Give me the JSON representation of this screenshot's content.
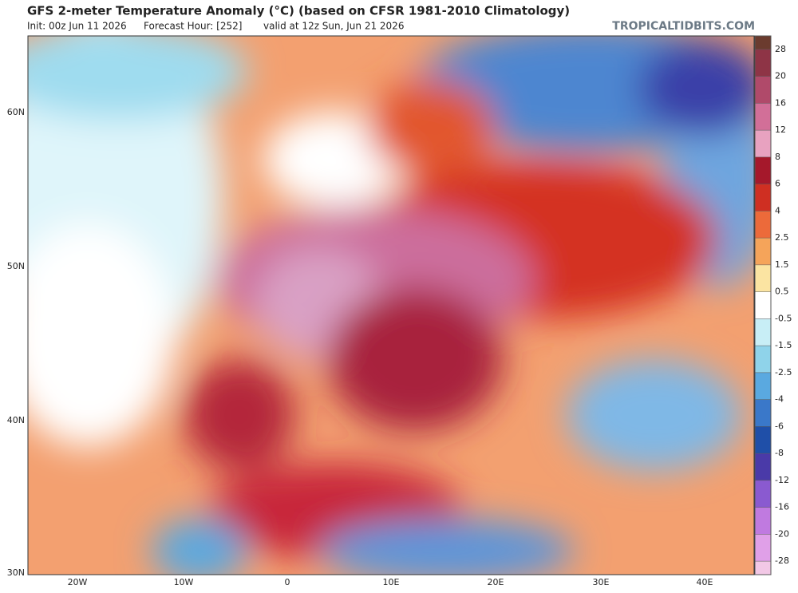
{
  "header": {
    "title": "GFS 2-meter Temperature Anomaly (°C) (based on CFSR 1981-2010 Climatology)",
    "init": "Init: 00z Jun 11 2026",
    "forecast_hour": "Forecast Hour: [252]",
    "valid": "valid at 12z Sun, Jun 21 2026",
    "watermark": "TROPICALTIDBITS.COM"
  },
  "map": {
    "lat_labels": [
      "60N",
      "50N",
      "40N",
      "30N"
    ],
    "lon_labels": [
      "20W",
      "10W",
      "0",
      "10E",
      "20E",
      "30E",
      "40E"
    ]
  },
  "colorbar": {
    "ticks": [
      28,
      20,
      16,
      12,
      8,
      6,
      4,
      2.5,
      1.5,
      0.5,
      -0.5,
      -1.5,
      -2.5,
      -4,
      -6,
      -8,
      -12,
      -16,
      -20,
      -28
    ],
    "colors": [
      "#6b3b2e",
      "#8e3446",
      "#b04a6a",
      "#d26f98",
      "#e8a2c0",
      "#a5182b",
      "#cf2f22",
      "#ec6a3a",
      "#f5a45a",
      "#fbe4a2",
      "#ffffff",
      "#c8eef6",
      "#8fd3ea",
      "#5aa9e0",
      "#3a78c9",
      "#1f4fa8",
      "#4a3aa8",
      "#8a5ad0",
      "#c07ae0",
      "#e0a0e8",
      "#f2c8e6"
    ]
  }
}
